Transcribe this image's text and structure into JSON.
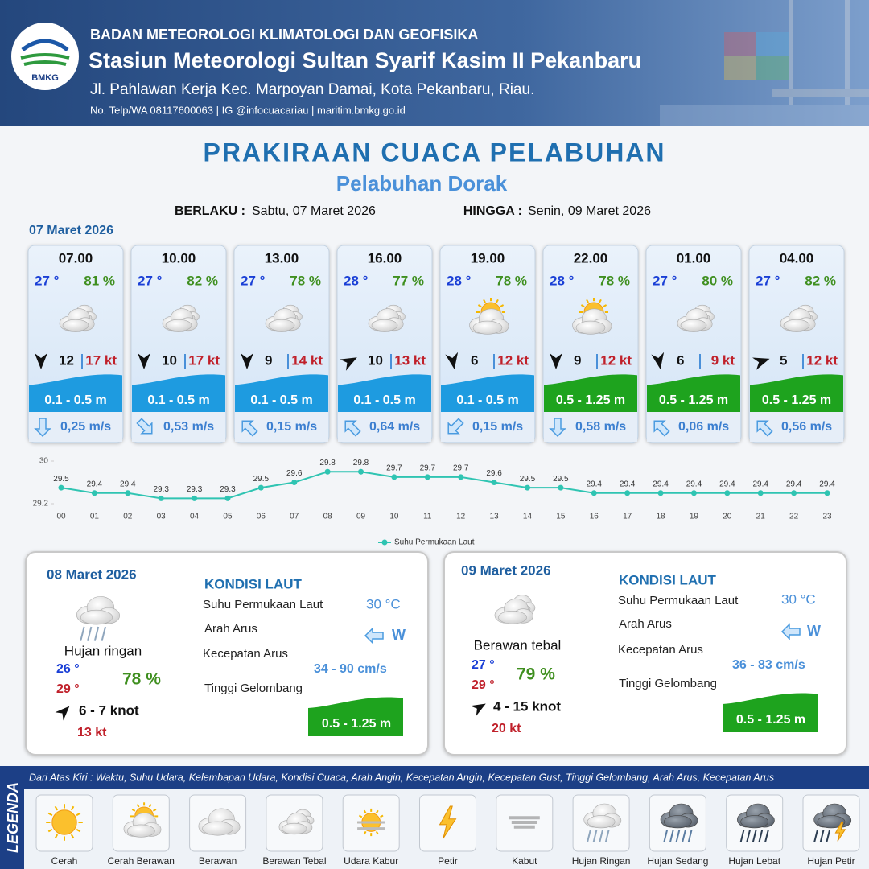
{
  "header": {
    "logo": "BMKG",
    "org": "BADAN METEOROLOGI KLIMATOLOGI DAN GEOFISIKA",
    "station": "Stasiun Meteorologi Sultan Syarif Kasim II Pekanbaru",
    "address": "Jl. Pahlawan Kerja Kec. Marpoyan Damai, Kota Pekanbaru, Riau.",
    "contact": "No. Telp/WA 08117600063 | IG @infocuacariau | maritim.bmkg.go.id"
  },
  "title": "PRAKIRAAN CUACA PELABUHAN",
  "subtitle": "Pelabuhan Dorak",
  "validity": {
    "from_label": "BERLAKU :",
    "from": "Sabtu, 07 Maret 2026",
    "to_label": "HINGGA :",
    "to": "Senin, 09 Maret 2026"
  },
  "day1": {
    "date": "07 Maret 2026",
    "cards": [
      {
        "time": "07.00",
        "temp": "27 °",
        "humidity": "81 %",
        "wind": "12",
        "gust": "17 kt",
        "wave": "0.1 - 0.5 m",
        "wave_color": "#1e9be0",
        "current": "0,25 m/s"
      },
      {
        "time": "10.00",
        "temp": "27 °",
        "humidity": "82 %",
        "wind": "10",
        "gust": "17 kt",
        "wave": "0.1 - 0.5 m",
        "wave_color": "#1e9be0",
        "current": "0,53 m/s"
      },
      {
        "time": "13.00",
        "temp": "27 °",
        "humidity": "78 %",
        "wind": "9",
        "gust": "14 kt",
        "wave": "0.1 - 0.5 m",
        "wave_color": "#1e9be0",
        "current": "0,15 m/s"
      },
      {
        "time": "16.00",
        "temp": "28 °",
        "humidity": "77 %",
        "wind": "10",
        "gust": "13 kt",
        "wave": "0.1 - 0.5 m",
        "wave_color": "#1e9be0",
        "current": "0,64 m/s"
      },
      {
        "time": "19.00",
        "temp": "28 °",
        "humidity": "78 %",
        "wind": "6",
        "gust": "12 kt",
        "wave": "0.1 - 0.5 m",
        "wave_color": "#1e9be0",
        "current": "0,15 m/s"
      },
      {
        "time": "22.00",
        "temp": "28 °",
        "humidity": "78 %",
        "wind": "9",
        "gust": "12 kt",
        "wave": "0.5 - 1.25 m",
        "wave_color": "#1ea31e",
        "current": "0,58 m/s"
      },
      {
        "time": "01.00",
        "temp": "27 °",
        "humidity": "80 %",
        "wind": "6",
        "gust": "9 kt",
        "wave": "0.5 - 1.25 m",
        "wave_color": "#1ea31e",
        "current": "0,06 m/s"
      },
      {
        "time": "04.00",
        "temp": "27 °",
        "humidity": "82 %",
        "wind": "5",
        "gust": "12 kt",
        "wave": "0.5 - 1.25 m",
        "wave_color": "#1ea31e",
        "current": "0,56 m/s"
      }
    ]
  },
  "chart_data": {
    "type": "line",
    "categories": [
      "00",
      "01",
      "02",
      "03",
      "04",
      "05",
      "06",
      "07",
      "08",
      "09",
      "10",
      "11",
      "12",
      "13",
      "14",
      "15",
      "16",
      "17",
      "18",
      "19",
      "20",
      "21",
      "22",
      "23"
    ],
    "series": [
      {
        "name": "Suhu Permukaan Laut",
        "color": "#2fc4b2",
        "values": [
          29.5,
          29.4,
          29.4,
          29.3,
          29.3,
          29.3,
          29.5,
          29.6,
          29.8,
          29.8,
          29.7,
          29.7,
          29.7,
          29.6,
          29.5,
          29.5,
          29.4,
          29.4,
          29.4,
          29.4,
          29.4,
          29.4,
          29.4,
          29.4
        ]
      }
    ],
    "ylim": [
      29.2,
      30
    ],
    "yticks": [
      29.2,
      30
    ]
  },
  "panels": [
    {
      "date": "08 Maret 2026",
      "weather": "Hujan ringan",
      "tmin": "26 °",
      "tmax": "29 °",
      "humidity": "78 %",
      "wind": "6  - 7 knot",
      "gust": "13 kt",
      "sea_title": "KONDISI LAUT",
      "labels": [
        "Suhu Permukaan Laut",
        "Arah Arus",
        "Kecepatan Arus",
        "Tinggi Gelombang"
      ],
      "sst": "30 °C",
      "current_dir": "W",
      "current_speed": "34  - 90 cm/s",
      "wave": "0.5 - 1.25 m"
    },
    {
      "date": "09 Maret 2026",
      "weather": "Berawan tebal",
      "tmin": "27 °",
      "tmax": "29 °",
      "humidity": "79 %",
      "wind": "4  - 15 knot",
      "gust": "20 kt",
      "sea_title": "KONDISI LAUT",
      "labels": [
        "Suhu Permukaan Laut",
        "Arah Arus",
        "Kecepatan Arus",
        "Tinggi Gelombang"
      ],
      "sst": "30 °C",
      "current_dir": "W",
      "current_speed": "36  - 83 cm/s",
      "wave": "0.5 - 1.25 m"
    }
  ],
  "legend": {
    "title": "LEGENDA",
    "description": "Dari Atas Kiri : Waktu, Suhu Udara, Kelembapan Udara, Kondisi Cuaca, Arah Angin, Kecepatan Angin, Kecepatan Gust, Tinggi Gelombang, Arah Arus, Kecepatan Arus",
    "items": [
      "Cerah",
      "Cerah Berawan",
      "Berawan",
      "Berawan Tebal",
      "Udara Kabur",
      "Petir",
      "Kabut",
      "Hujan Ringan",
      "Hujan Sedang",
      "Hujan Lebat",
      "Hujan Petir"
    ]
  }
}
